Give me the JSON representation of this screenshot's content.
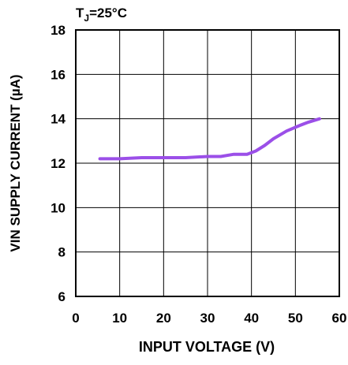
{
  "chart_data": {
    "type": "line",
    "annotation": {
      "main": "T",
      "sub": "J",
      "rest": "=25°C"
    },
    "xlabel": "INPUT VOLTAGE (V)",
    "ylabel": "VIN SUPPLY CURRENT (µA)",
    "xlim": [
      0,
      60
    ],
    "ylim": [
      6,
      18
    ],
    "xticks": [
      "0",
      "10",
      "20",
      "30",
      "40",
      "50",
      "60"
    ],
    "yticks": [
      "6",
      "8",
      "10",
      "12",
      "14",
      "16",
      "18"
    ],
    "grid": true,
    "line_color": "#9b4fe8",
    "series": [
      {
        "x": [
          5.5,
          10,
          15,
          20,
          25,
          30,
          33,
          36,
          39,
          41,
          43,
          45,
          48,
          51,
          53,
          55.5
        ],
        "values": [
          12.2,
          12.2,
          12.25,
          12.25,
          12.25,
          12.3,
          12.3,
          12.4,
          12.4,
          12.55,
          12.8,
          13.1,
          13.45,
          13.7,
          13.85,
          14.0
        ]
      }
    ]
  }
}
